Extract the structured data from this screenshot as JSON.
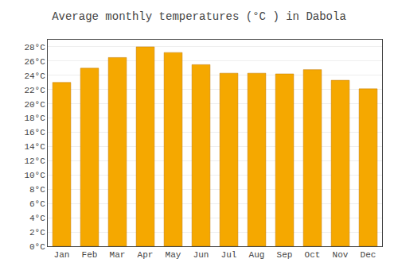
{
  "chart_data": {
    "type": "bar",
    "title": "Average monthly temperatures (°C ) in Dabola",
    "categories": [
      "Jan",
      "Feb",
      "Mar",
      "Apr",
      "May",
      "Jun",
      "Jul",
      "Aug",
      "Sep",
      "Oct",
      "Nov",
      "Dec"
    ],
    "values": [
      23.0,
      25.0,
      26.5,
      28.0,
      27.2,
      25.5,
      24.3,
      24.3,
      24.2,
      24.8,
      23.3,
      22.1
    ],
    "color": "#F5A800",
    "ylim": [
      0,
      29
    ],
    "yticks": [
      {
        "value": 0,
        "label": "0°C"
      },
      {
        "value": 2,
        "label": "2°C"
      },
      {
        "value": 4,
        "label": "4°C"
      },
      {
        "value": 6,
        "label": "6°C"
      },
      {
        "value": 8,
        "label": "8°C"
      },
      {
        "value": 10,
        "label": "10°C"
      },
      {
        "value": 12,
        "label": "12°C"
      },
      {
        "value": 14,
        "label": "14°C"
      },
      {
        "value": 16,
        "label": "16°C"
      },
      {
        "value": 18,
        "label": "18°C"
      },
      {
        "value": 20,
        "label": "20°C"
      },
      {
        "value": 22,
        "label": "22°C"
      },
      {
        "value": 24,
        "label": "24°C"
      },
      {
        "value": 26,
        "label": "26°C"
      },
      {
        "value": 28,
        "label": "28°C"
      }
    ],
    "grid": true
  }
}
